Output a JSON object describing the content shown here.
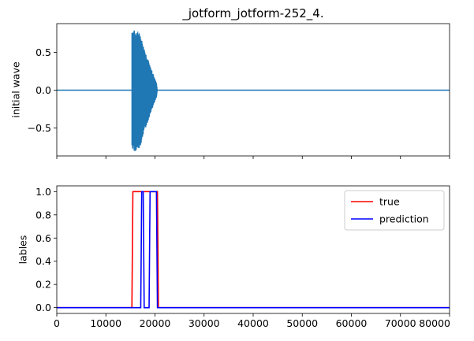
{
  "chart_data": [
    {
      "type": "line",
      "title": "_jotform_jotform-252_4.",
      "xlabel": "",
      "ylabel": "initial wave",
      "xlim": [
        0,
        80000
      ],
      "ylim": [
        -0.87,
        0.88
      ],
      "yticks": [
        "0.5",
        "0.0",
        "−0.5"
      ],
      "ytick_values": [
        0.5,
        0.0,
        -0.5
      ],
      "xticks": [
        0,
        10000,
        20000,
        30000,
        40000,
        50000,
        60000,
        70000,
        80000
      ],
      "show_xtick_labels": false,
      "grid": false,
      "series": [
        {
          "color": "#1f77b4",
          "baseline": 0.0,
          "envelope": {
            "x": [
              15300,
              15600,
              16000,
              16500,
              17000,
              17500,
              18000,
              18500,
              19000,
              19500,
              20000,
              20300,
              20500
            ],
            "upper": [
              0.82,
              0.8,
              0.79,
              0.78,
              0.75,
              0.62,
              0.52,
              0.43,
              0.32,
              0.24,
              0.15,
              0.1,
              0.0
            ],
            "lower": [
              -0.78,
              -0.8,
              -0.81,
              -0.79,
              -0.75,
              -0.62,
              -0.52,
              -0.43,
              -0.32,
              -0.24,
              -0.15,
              -0.1,
              0.0
            ]
          }
        }
      ]
    },
    {
      "type": "line",
      "title": "",
      "xlabel": "",
      "ylabel": "lables",
      "xlim": [
        0,
        80000
      ],
      "ylim": [
        -0.05,
        1.05
      ],
      "yticks": [
        "0.0",
        "0.2",
        "0.4",
        "0.6",
        "0.8",
        "1.0"
      ],
      "ytick_values": [
        0.0,
        0.2,
        0.4,
        0.6,
        0.8,
        1.0
      ],
      "xticks": [
        "0",
        "10000",
        "20000",
        "30000",
        "40000",
        "50000",
        "60000",
        "70000",
        "80000"
      ],
      "xtick_values": [
        0,
        10000,
        20000,
        30000,
        40000,
        50000,
        60000,
        70000,
        80000
      ],
      "grid": false,
      "legend_position": "top-right",
      "series": [
        {
          "name": "true",
          "color": "#ff0000",
          "x": [
            0,
            15300,
            15500,
            20500,
            20700,
            80000
          ],
          "y": [
            0,
            0,
            1,
            1,
            0,
            0
          ]
        },
        {
          "name": "prediction",
          "color": "#0000ff",
          "x": [
            0,
            17100,
            17300,
            17600,
            17800,
            18800,
            19000,
            20300,
            20500,
            80000
          ],
          "y": [
            0,
            0,
            1,
            1,
            0,
            0,
            1,
            1,
            0,
            0
          ]
        }
      ]
    }
  ]
}
